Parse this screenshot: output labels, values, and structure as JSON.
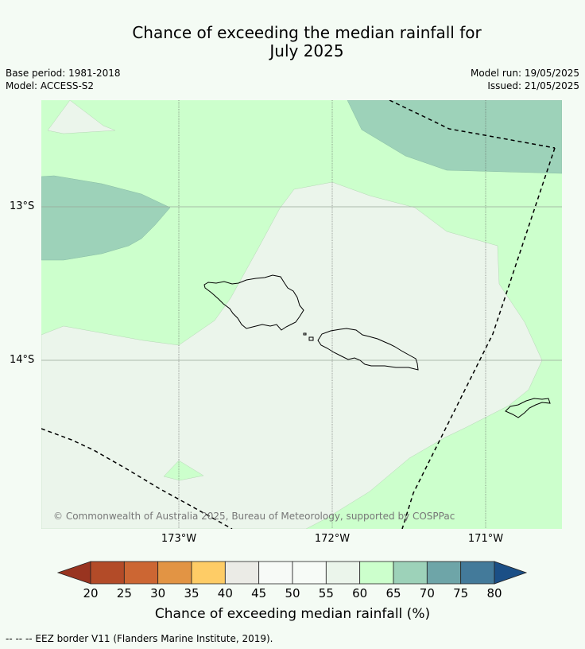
{
  "title": {
    "line1": "Chance of exceeding the median rainfall for",
    "line2": "July 2025"
  },
  "meta": {
    "base_period": "Base period: 1981-2018",
    "model": "Model: ACCESS-S2",
    "model_run": "Model run: 19/05/2025",
    "issued": "Issued: 21/05/2025"
  },
  "map": {
    "region": "Samoa",
    "lat_labels": [
      "13°S",
      "14°S"
    ],
    "lon_labels": [
      "173°W",
      "172°W",
      "171°W"
    ],
    "copyright": "© Commonwealth of Australia 2025, Bureau of Meteorology, supported by COSPPac",
    "colors": {
      "c60_65": "#ccffcc",
      "c55_60": "#ebf5eb",
      "c70_75": "#9dd2b9"
    }
  },
  "colorbar": {
    "ticks": [
      "20",
      "25",
      "30",
      "35",
      "40",
      "45",
      "50",
      "55",
      "60",
      "65",
      "70",
      "75",
      "80"
    ],
    "colors": [
      "#993420",
      "#b34b28",
      "#cc6633",
      "#e29444",
      "#fecc66",
      "#ebebe6",
      "#f7faf7",
      "#f7fbf7",
      "#ebf5eb",
      "#ccffcc",
      "#9dd2b9",
      "#6ea5a8",
      "#437a9a",
      "#1b4f86"
    ],
    "label": "Chance of exceeding median rainfall (%)"
  },
  "footnote": "--  --  -- EEZ border V11 (Flanders Marine Institute, 2019)."
}
